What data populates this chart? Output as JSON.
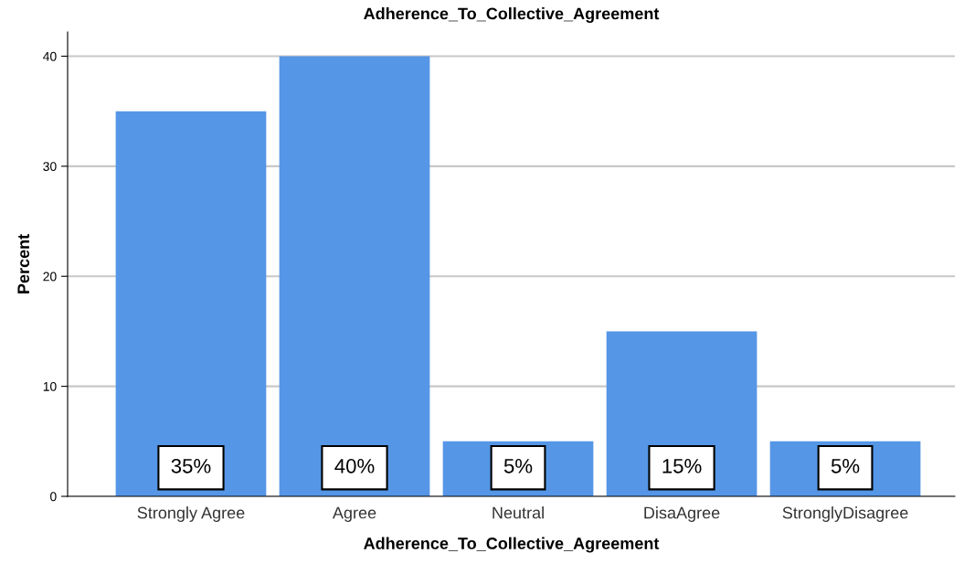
{
  "chart_data": {
    "type": "bar",
    "title": "Adherence_To_Collective_Agreement",
    "xlabel": "Adherence_To_Collective_Agreement",
    "ylabel": "Percent",
    "categories": [
      "Strongly Agree",
      "Agree",
      "Neutral",
      "DisaAgree",
      "StronglyDisagree"
    ],
    "values": [
      35,
      40,
      5,
      15,
      5
    ],
    "value_labels": [
      "35%",
      "40%",
      "5%",
      "15%",
      "5%"
    ],
    "color": "#5596e6",
    "ylim": [
      0,
      42.2
    ],
    "yticks": [
      0,
      10,
      20,
      30,
      40
    ],
    "grid": "y"
  }
}
